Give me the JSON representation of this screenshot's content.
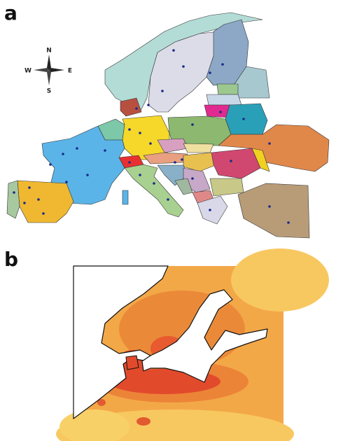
{
  "panels": [
    {
      "label": "a",
      "compass": {
        "n": "N",
        "s": "S",
        "e": "E",
        "w": "W"
      }
    },
    {
      "label": "b"
    }
  ]
}
